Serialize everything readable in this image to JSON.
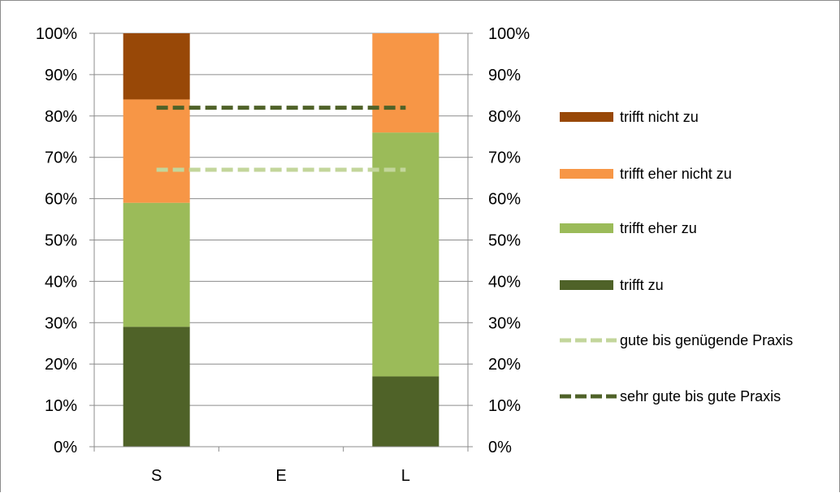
{
  "chart_data": {
    "type": "bar",
    "stacked": true,
    "categories": [
      "S",
      "E",
      "L"
    ],
    "ylim": [
      0,
      100
    ],
    "yticks": [
      "0%",
      "10%",
      "20%",
      "30%",
      "40%",
      "50%",
      "60%",
      "70%",
      "80%",
      "90%",
      "100%"
    ],
    "grid": true,
    "legend_position": "right",
    "series": [
      {
        "name": "trifft zu",
        "values": [
          29,
          0,
          17
        ],
        "color": "#4f6228"
      },
      {
        "name": "trifft eher zu",
        "values": [
          30,
          0,
          59
        ],
        "color": "#9bbb59"
      },
      {
        "name": "trifft eher nicht zu",
        "values": [
          25,
          0,
          24
        ],
        "color": "#f79646"
      },
      {
        "name": "trifft nicht zu",
        "values": [
          16,
          0,
          0.7
        ],
        "color": "#984807"
      }
    ],
    "reference_lines": [
      {
        "name": "gute bis genügende Praxis",
        "value": 67,
        "from": "S",
        "to": "L",
        "style": "dashed",
        "color": "#c3d69b"
      },
      {
        "name": "sehr gute bis gute Praxis",
        "value": 82,
        "from": "S",
        "to": "L",
        "style": "dashed",
        "color": "#4f6228"
      }
    ],
    "legend_order": [
      "trifft nicht zu",
      "trifft eher nicht zu",
      "trifft eher zu",
      "trifft zu",
      "gute bis genügende Praxis",
      "sehr gute bis gute Praxis"
    ]
  }
}
